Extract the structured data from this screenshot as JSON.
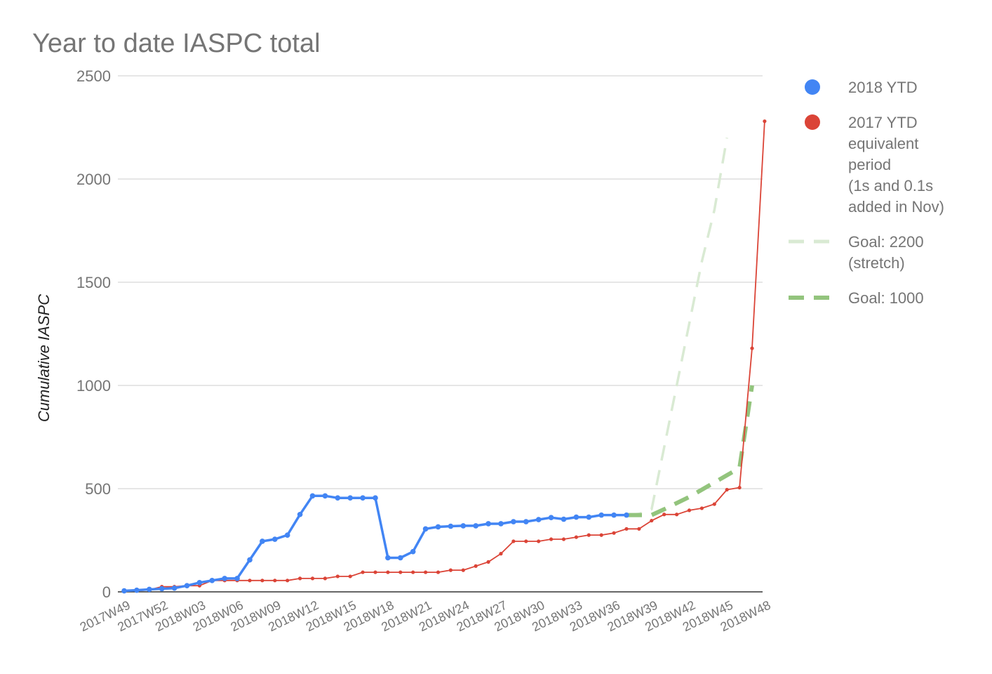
{
  "chart_data": {
    "type": "line",
    "title": "Year to date IASPC total",
    "xlabel": "",
    "ylabel": "Cumulative IASPC",
    "ylim": [
      0,
      2500
    ],
    "y_ticks": [
      "0",
      "500",
      "1000",
      "1500",
      "2000",
      "2500"
    ],
    "x": [
      "2017W49",
      "2017W50",
      "2017W51",
      "2017W52",
      "2018W01",
      "2018W02",
      "2018W03",
      "2018W04",
      "2018W05",
      "2018W06",
      "2018W07",
      "2018W08",
      "2018W09",
      "2018W10",
      "2018W11",
      "2018W12",
      "2018W13",
      "2018W14",
      "2018W15",
      "2018W16",
      "2018W17",
      "2018W18",
      "2018W19",
      "2018W20",
      "2018W21",
      "2018W22",
      "2018W23",
      "2018W24",
      "2018W25",
      "2018W26",
      "2018W27",
      "2018W28",
      "2018W29",
      "2018W30",
      "2018W31",
      "2018W32",
      "2018W33",
      "2018W34",
      "2018W35",
      "2018W36",
      "2018W37",
      "2018W38",
      "2018W39",
      "2018W40",
      "2018W41",
      "2018W42",
      "2018W43",
      "2018W44",
      "2018W45",
      "2018W46",
      "2018W47",
      "2018W48"
    ],
    "x_tick_labels": [
      "2017W49",
      "2017W52",
      "2018W03",
      "2018W06",
      "2018W09",
      "2018W12",
      "2018W15",
      "2018W18",
      "2018W21",
      "2018W24",
      "2018W27",
      "2018W30",
      "2018W33",
      "2018W36",
      "2018W39",
      "2018W42",
      "2018W45",
      "2018W48"
    ],
    "series": [
      {
        "name": "2018 YTD",
        "color": "#4285f4",
        "style": "line-markers",
        "values": [
          5,
          8,
          12,
          15,
          18,
          30,
          45,
          55,
          65,
          65,
          155,
          245,
          255,
          275,
          375,
          465,
          465,
          455,
          455,
          455,
          455,
          165,
          165,
          195,
          305,
          315,
          318,
          320,
          320,
          330,
          330,
          340,
          340,
          350,
          360,
          352,
          362,
          362,
          372,
          372,
          372,
          null,
          null,
          null,
          null,
          null,
          null,
          null,
          null,
          null,
          null,
          null
        ]
      },
      {
        "name": "2017 YTD equivalent period (1s and 0.1s added in Nov)",
        "color": "#db4437",
        "style": "thin-line-markers",
        "values": [
          5,
          5,
          10,
          25,
          25,
          30,
          30,
          55,
          55,
          55,
          55,
          55,
          55,
          55,
          65,
          65,
          65,
          75,
          75,
          95,
          95,
          95,
          95,
          95,
          95,
          95,
          105,
          105,
          125,
          145,
          185,
          245,
          245,
          245,
          255,
          255,
          265,
          275,
          275,
          285,
          305,
          305,
          345,
          375,
          375,
          395,
          405,
          425,
          495,
          505,
          1180,
          2280
        ]
      },
      {
        "name": "Goal: 2200 (stretch)",
        "legend_lines": [
          "Goal: 2200",
          "(stretch)"
        ],
        "color": "#d9ead3",
        "style": "dashed",
        "values": [
          null,
          null,
          null,
          null,
          null,
          null,
          null,
          null,
          null,
          null,
          null,
          null,
          null,
          null,
          null,
          null,
          null,
          null,
          null,
          null,
          null,
          null,
          null,
          null,
          null,
          null,
          null,
          null,
          null,
          null,
          null,
          null,
          null,
          null,
          null,
          null,
          null,
          null,
          null,
          null,
          372,
          378,
          400,
          700,
          1000,
          1300,
          1600,
          1850,
          2200,
          null,
          null,
          null
        ]
      },
      {
        "name": "Goal: 1000",
        "legend_lines": [
          "Goal: 1000"
        ],
        "color": "#93c47d",
        "style": "thick-dashed",
        "values": [
          null,
          null,
          null,
          null,
          null,
          null,
          null,
          null,
          null,
          null,
          null,
          null,
          null,
          null,
          null,
          null,
          null,
          null,
          null,
          null,
          null,
          null,
          null,
          null,
          null,
          null,
          null,
          null,
          null,
          null,
          null,
          null,
          null,
          null,
          null,
          null,
          null,
          null,
          null,
          null,
          372,
          372,
          372,
          400,
          430,
          460,
          495,
          530,
          565,
          600,
          1000,
          null
        ]
      }
    ],
    "legend": {
      "position": "right",
      "entries": [
        {
          "lines": [
            "2018 YTD"
          ],
          "marker": "circle",
          "color": "#4285f4"
        },
        {
          "lines": [
            "2017 YTD",
            "equivalent",
            "period",
            "(1s and 0.1s",
            "added in Nov)"
          ],
          "marker": "circle",
          "color": "#db4437"
        },
        {
          "lines": [
            "Goal: 2200",
            "(stretch)"
          ],
          "marker": "dash",
          "color": "#d9ead3"
        },
        {
          "lines": [
            "Goal: 1000"
          ],
          "marker": "dash",
          "color": "#93c47d"
        }
      ]
    },
    "grid": true
  }
}
